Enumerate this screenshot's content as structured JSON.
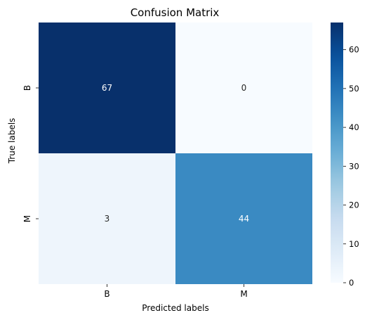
{
  "chart_data": {
    "type": "heatmap",
    "title": "Confusion Matrix",
    "xlabel": "Predicted labels",
    "ylabel": "True labels",
    "x_categories": [
      "B",
      "M"
    ],
    "y_categories": [
      "B",
      "M"
    ],
    "values": [
      [
        67,
        0
      ],
      [
        3,
        44
      ]
    ],
    "colormap": "Blues",
    "color_range": [
      0,
      67
    ],
    "colorbar_ticks": [
      0,
      10,
      20,
      30,
      40,
      50,
      60
    ],
    "annotations": true,
    "grid": false
  }
}
